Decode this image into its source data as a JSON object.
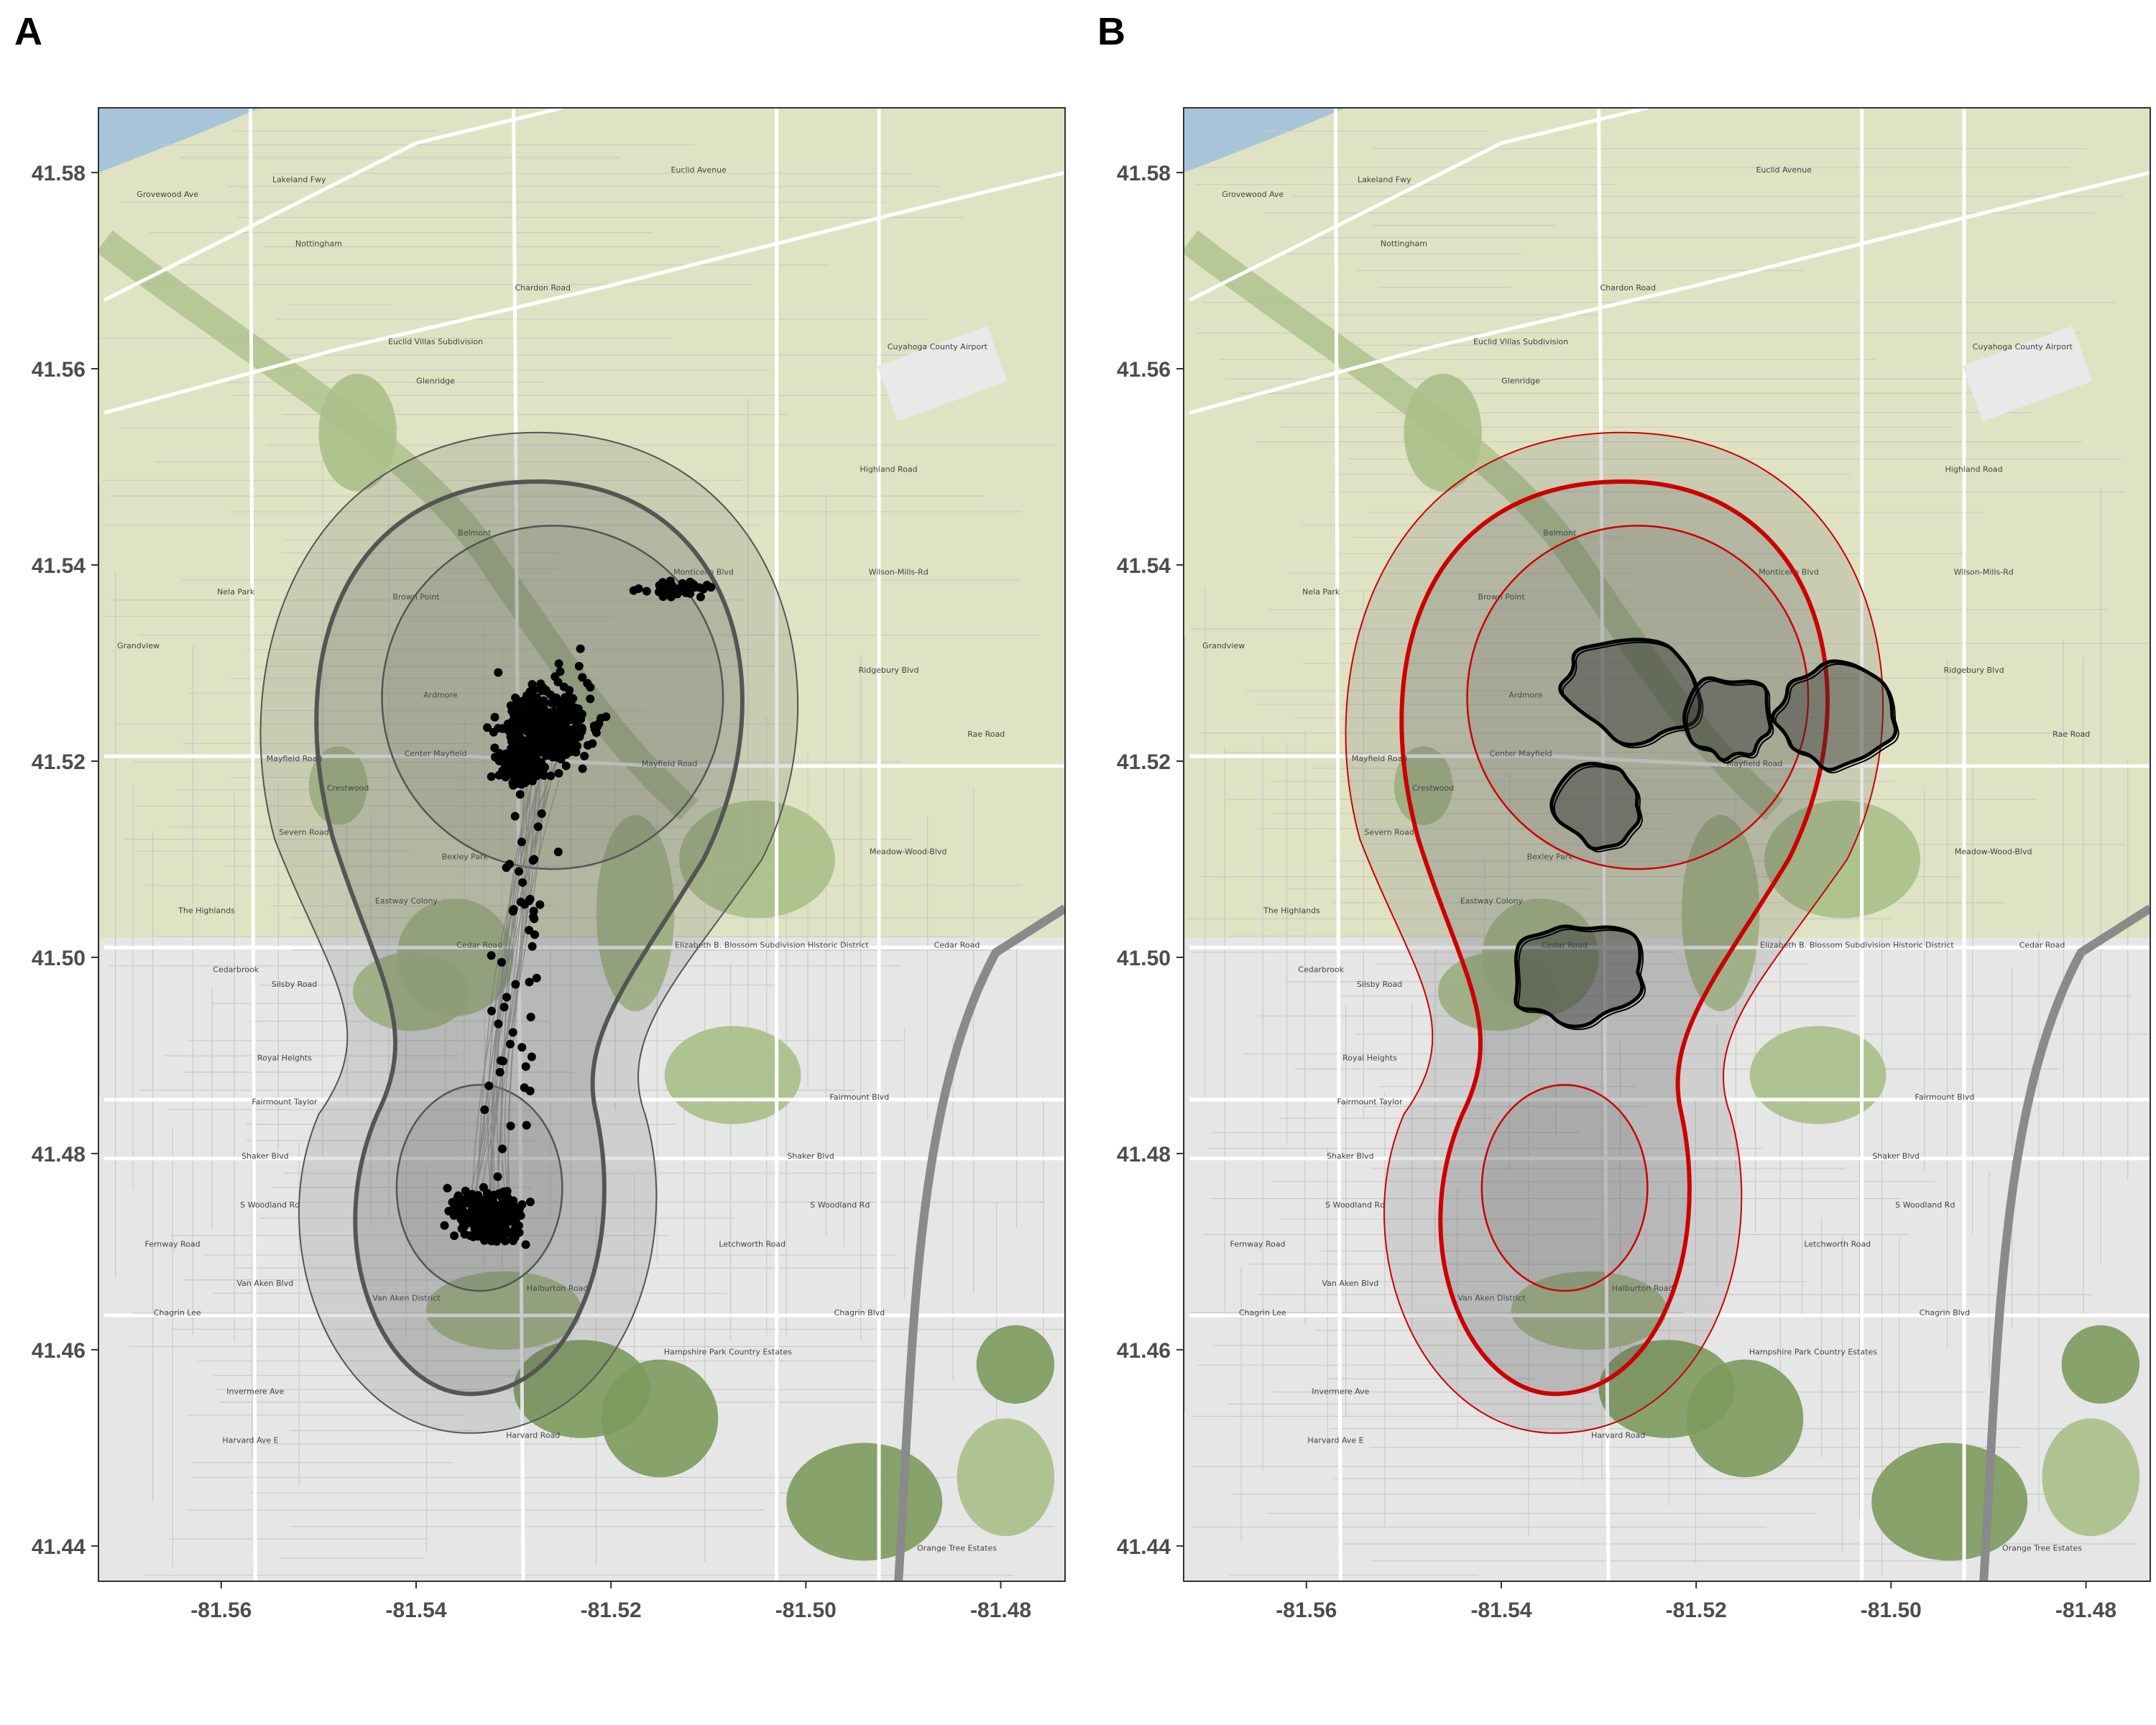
{
  "panels": [
    {
      "id": "A",
      "label": "A",
      "content": "trajectory points with contours"
    },
    {
      "id": "B",
      "label": "B",
      "content": "home range contours with kernel density polygons"
    }
  ],
  "axes": {
    "x_ticks": [
      "-81.56",
      "-81.54",
      "-81.52",
      "-81.50",
      "-81.48"
    ],
    "y_ticks": [
      "41.58",
      "41.56",
      "41.54",
      "41.52",
      "41.50",
      "41.48",
      "41.46",
      "41.44"
    ],
    "xlim": [
      -81.5726,
      -81.4734
    ],
    "ylim": [
      41.4364,
      41.5866
    ]
  },
  "colors": {
    "map_background": "#dfe3c3",
    "park_green": "#a9bf88",
    "dark_green": "#7c9a5c",
    "road_gray": "#9a9a9a",
    "urban_gray": "#e6e6e6",
    "water_blue": "#a7c4d8",
    "contour_gray": "#555555",
    "contour_red": "#cc0000",
    "points_black": "#000000"
  },
  "map_labels": [
    {
      "text": "Lakeland Fwy",
      "lon": -81.552,
      "lat": 41.579
    },
    {
      "text": "Grovewood Ave",
      "lon": -81.5655,
      "lat": 41.5775
    },
    {
      "text": "Nottingham",
      "lon": -81.55,
      "lat": 41.5725
    },
    {
      "text": "Euclid Avenue",
      "lon": -81.511,
      "lat": 41.58
    },
    {
      "text": "Chardon Road",
      "lon": -81.527,
      "lat": 41.568
    },
    {
      "text": "Cuyahoga County Airport",
      "lon": -81.4865,
      "lat": 41.562
    },
    {
      "text": "Euclid Villas Subdivision",
      "lon": -81.538,
      "lat": 41.5625
    },
    {
      "text": "Glenridge",
      "lon": -81.538,
      "lat": 41.5585
    },
    {
      "text": "Highland Road",
      "lon": -81.4915,
      "lat": 41.5495
    },
    {
      "text": "Belmont",
      "lon": -81.534,
      "lat": 41.543
    },
    {
      "text": "Nela Park",
      "lon": -81.5585,
      "lat": 41.537
    },
    {
      "text": "Brown Point",
      "lon": -81.54,
      "lat": 41.5365
    },
    {
      "text": "Grandview",
      "lon": -81.5685,
      "lat": 41.5315
    },
    {
      "text": "Monticello Blvd",
      "lon": -81.5105,
      "lat": 41.539
    },
    {
      "text": "Wilson-Mills-Rd",
      "lon": -81.4905,
      "lat": 41.539
    },
    {
      "text": "Ridgebury Blvd",
      "lon": -81.4915,
      "lat": 41.529
    },
    {
      "text": "Ardmore",
      "lon": -81.5375,
      "lat": 41.5265
    },
    {
      "text": "Rae Road",
      "lon": -81.4815,
      "lat": 41.5225
    },
    {
      "text": "Mayfield Road",
      "lon": -81.5525,
      "lat": 41.52
    },
    {
      "text": "Center Mayfield",
      "lon": -81.538,
      "lat": 41.5205
    },
    {
      "text": "Mayfield Road",
      "lon": -81.514,
      "lat": 41.5195
    },
    {
      "text": "Crestwood",
      "lon": -81.547,
      "lat": 41.517
    },
    {
      "text": "Severn Road",
      "lon": -81.5515,
      "lat": 41.5125
    },
    {
      "text": "Meadow-Wood-Blvd",
      "lon": -81.4895,
      "lat": 41.5105
    },
    {
      "text": "Bexley Park",
      "lon": -81.535,
      "lat": 41.51
    },
    {
      "text": "The Highlands",
      "lon": -81.5615,
      "lat": 41.5045
    },
    {
      "text": "Eastway Colony",
      "lon": -81.541,
      "lat": 41.5055
    },
    {
      "text": "Cedar Road",
      "lon": -81.5335,
      "lat": 41.501
    },
    {
      "text": "Elizabeth B. Blossom Subdivision Historic District",
      "lon": -81.5035,
      "lat": 41.501
    },
    {
      "text": "Cedar Road",
      "lon": -81.4845,
      "lat": 41.501
    },
    {
      "text": "Cedarbrook",
      "lon": -81.5585,
      "lat": 41.4985
    },
    {
      "text": "Silsby Road",
      "lon": -81.5525,
      "lat": 41.497
    },
    {
      "text": "Royal Heights",
      "lon": -81.5535,
      "lat": 41.4895
    },
    {
      "text": "Fairmount Taylor",
      "lon": -81.5535,
      "lat": 41.485
    },
    {
      "text": "Fairmount Blvd",
      "lon": -81.4945,
      "lat": 41.4855
    },
    {
      "text": "Shaker Blvd",
      "lon": -81.5555,
      "lat": 41.4795
    },
    {
      "text": "Shaker Blvd",
      "lon": -81.4995,
      "lat": 41.4795
    },
    {
      "text": "S Woodland Rd",
      "lon": -81.555,
      "lat": 41.4745
    },
    {
      "text": "S Woodland Rd",
      "lon": -81.4965,
      "lat": 41.4745
    },
    {
      "text": "Fernway Road",
      "lon": -81.565,
      "lat": 41.4705
    },
    {
      "text": "Letchworth Road",
      "lon": -81.5055,
      "lat": 41.4705
    },
    {
      "text": "Van Aken Blvd",
      "lon": -81.5555,
      "lat": 41.4665
    },
    {
      "text": "Van Aken District",
      "lon": -81.541,
      "lat": 41.465
    },
    {
      "text": "Halburton Road",
      "lon": -81.5255,
      "lat": 41.466
    },
    {
      "text": "Chagrin Lee",
      "lon": -81.5645,
      "lat": 41.4635
    },
    {
      "text": "Chagrin Blvd",
      "lon": -81.4945,
      "lat": 41.4635
    },
    {
      "text": "Hampshire Park Country Estates",
      "lon": -81.508,
      "lat": 41.4595
    },
    {
      "text": "Invermere Ave",
      "lon": -81.5565,
      "lat": 41.4555
    },
    {
      "text": "Harvard Ave E",
      "lon": -81.557,
      "lat": 41.4505
    },
    {
      "text": "Harvard Road",
      "lon": -81.528,
      "lat": 41.451
    },
    {
      "text": "Orange Tree Estates",
      "lon": -81.4845,
      "lat": 41.4395
    }
  ]
}
